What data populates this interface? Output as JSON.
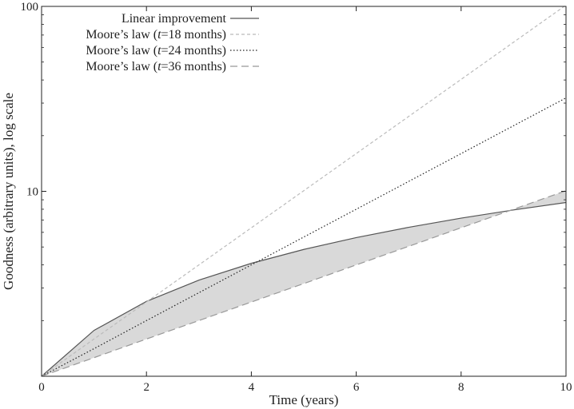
{
  "chart_data": {
    "type": "line",
    "xlabel": "Time (years)",
    "ylabel": "Goodness (arbitrary units), log scale",
    "xlim": [
      0,
      10
    ],
    "ylim": [
      1,
      100
    ],
    "yscale": "log",
    "xticks": [
      0,
      2,
      4,
      6,
      8,
      10
    ],
    "xtick_labels": [
      "0",
      "2",
      "4",
      "6",
      "8",
      "10"
    ],
    "yticks": [
      10,
      100
    ],
    "ytick_labels": [
      "10",
      "100"
    ],
    "legend_position": "top-left",
    "grid": false,
    "x": [
      0,
      1,
      2,
      3,
      4,
      5,
      6,
      7,
      8,
      9,
      10
    ],
    "series": [
      {
        "name": "Linear improvement",
        "style": "solid",
        "color": "#555555",
        "values": [
          1.0,
          1.77,
          2.54,
          3.31,
          4.08,
          4.85,
          5.62,
          6.39,
          7.16,
          7.93,
          8.7
        ]
      },
      {
        "name": "Moore’s law (t=18 months)",
        "style": "short-dash",
        "color": "#bbbbbb",
        "values": [
          1.0,
          1.59,
          2.52,
          4.0,
          6.35,
          10.08,
          16.0,
          25.4,
          40.3,
          64.0,
          101.6
        ]
      },
      {
        "name": "Moore’s law (t=24 months)",
        "style": "dotted",
        "color": "#222222",
        "values": [
          1.0,
          1.41,
          2.0,
          2.83,
          4.0,
          5.66,
          8.0,
          11.31,
          16.0,
          22.63,
          32.0
        ]
      },
      {
        "name": "Moore’s law (t=36 months)",
        "style": "long-dash",
        "color": "#999999",
        "values": [
          1.0,
          1.26,
          1.59,
          2.0,
          2.52,
          3.17,
          4.0,
          5.04,
          6.35,
          8.0,
          10.08
        ]
      }
    ],
    "shaded_region": {
      "between": [
        "Linear improvement",
        "Moore’s law (t=36 months)"
      ],
      "color": "#d9d9d9"
    }
  },
  "legend": [
    {
      "pre": "Linear improvement",
      "italic": "",
      "post": ""
    },
    {
      "pre": "Moore’s law (",
      "italic": "t",
      "post": "=18 months)"
    },
    {
      "pre": "Moore’s law (",
      "italic": "t",
      "post": "=24 months)"
    },
    {
      "pre": "Moore’s law (",
      "italic": "t",
      "post": "=36 months)"
    }
  ]
}
